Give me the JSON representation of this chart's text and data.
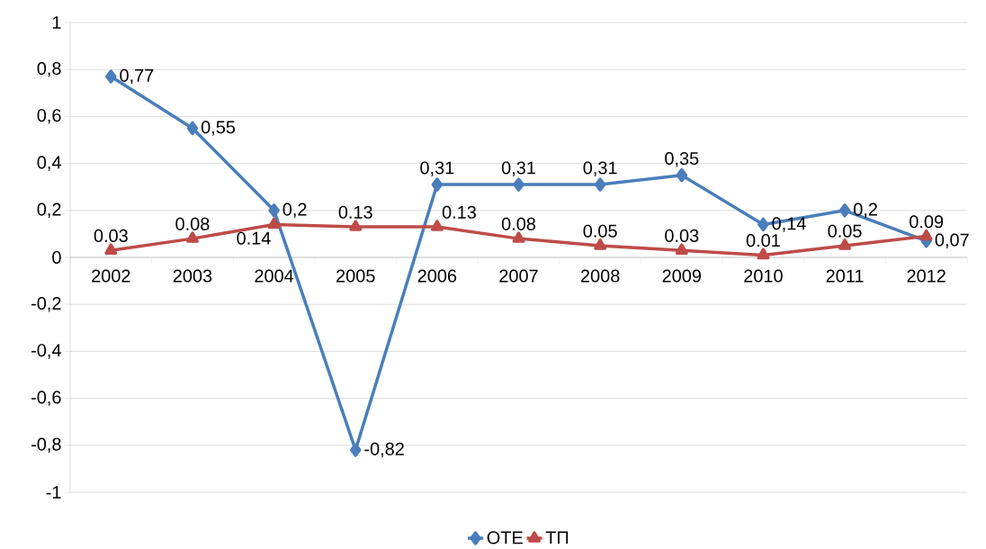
{
  "chart_data": {
    "type": "line",
    "categories": [
      "2002",
      "2003",
      "2004",
      "2005",
      "2006",
      "2007",
      "2008",
      "2009",
      "2010",
      "2011",
      "2012"
    ],
    "series": [
      {
        "name": "ОТЕ",
        "color": "#4a7ebb",
        "marker": "diamond",
        "values": [
          0.77,
          0.55,
          0.2,
          -0.82,
          0.31,
          0.31,
          0.31,
          0.35,
          0.14,
          0.2,
          0.07
        ],
        "value_labels": [
          "0,77",
          "0,55",
          "0,2",
          "-0,82",
          "0,31",
          "0,31",
          "0,31",
          "0,35",
          "0,14",
          "0,2",
          "0,07"
        ]
      },
      {
        "name": "ТП",
        "color": "#be4b48",
        "marker": "triangle",
        "values": [
          0.03,
          0.08,
          0.14,
          0.13,
          0.13,
          0.08,
          0.05,
          0.03,
          0.01,
          0.05,
          0.09
        ],
        "value_labels": [
          "0.03",
          "0.08",
          "0.14",
          "0.13",
          "0.13",
          "0.08",
          "0.05",
          "0.03",
          "0.01",
          "0.05",
          "0.09"
        ]
      }
    ],
    "ylim": [
      -1,
      1
    ],
    "yticks": [
      -1,
      {
        "value": -0.8,
        "label": "-0,8"
      },
      {
        "value": -0.6,
        "label": "-0,6"
      },
      {
        "value": -0.4,
        "label": "-0,4"
      },
      {
        "value": -0.2,
        "label": "-0,2"
      },
      0,
      {
        "value": 0.2,
        "label": "0,2"
      },
      {
        "value": 0.4,
        "label": "0,4"
      },
      {
        "value": 0.6,
        "label": "0,6"
      },
      {
        "value": 0.8,
        "label": "0,8"
      },
      1
    ],
    "grid": "y",
    "legend": "bottom"
  }
}
